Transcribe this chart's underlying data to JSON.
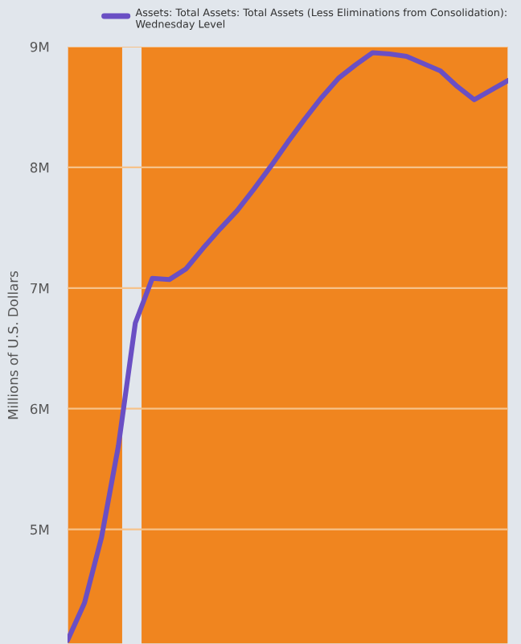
{
  "chart_data": {
    "type": "line",
    "ylabel": "Millions of U.S. Dollars",
    "categories": [
      null,
      null,
      null,
      null,
      null,
      null,
      null,
      null,
      null,
      null,
      null,
      null,
      null,
      null,
      null,
      null,
      null,
      null,
      null,
      null,
      null,
      null,
      null,
      null,
      null,
      null,
      null
    ],
    "series": [
      {
        "name": "Assets: Total Assets: Total Assets (Less Eliminations from Consolidation): Wednesday Level",
        "color": "#6a4fc4",
        "values": [
          4080000,
          4390000,
          4930000,
          5690000,
          6710000,
          7080000,
          7070000,
          7160000,
          7330000,
          7490000,
          7640000,
          7820000,
          8010000,
          8210000,
          8400000,
          8580000,
          8740000,
          8850000,
          8950000,
          8940000,
          8920000,
          8860000,
          8800000,
          8670000,
          8560000,
          8640000,
          8720000
        ]
      }
    ],
    "ylim": [
      4050000,
      9000000
    ],
    "yticks": [
      {
        "value": 5000000,
        "label": "5M"
      },
      {
        "value": 6000000,
        "label": "6M"
      },
      {
        "value": 7000000,
        "label": "7M"
      },
      {
        "value": 8000000,
        "label": "8M"
      },
      {
        "value": 9000000,
        "label": "9M"
      }
    ],
    "tick_labels": "y",
    "grid": "y",
    "legend": "top",
    "line_style": "solid",
    "marker": "none"
  }
}
